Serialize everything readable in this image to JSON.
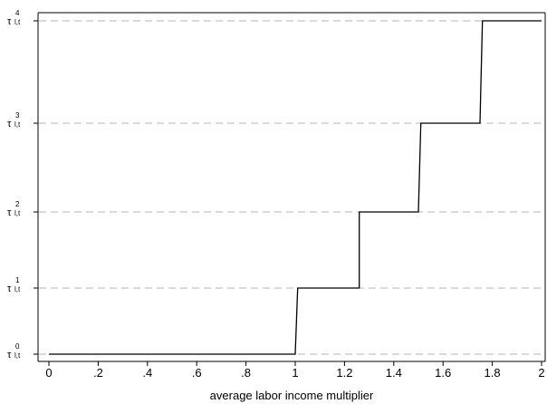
{
  "chart_data": {
    "type": "line",
    "title": "",
    "xlabel": "average labor income multiplier",
    "ylabel": "",
    "xlim": [
      0,
      2
    ],
    "x_ticks": [
      0,
      0.2,
      0.4,
      0.6,
      0.8,
      1,
      1.2,
      1.4,
      1.6,
      1.8,
      2
    ],
    "x_tick_labels": [
      "0",
      ".2",
      ".4",
      ".6",
      ".8",
      "1",
      "1.2",
      "1.4",
      "1.6",
      "1.8",
      "2"
    ],
    "y_levels": [
      0,
      1,
      2,
      3,
      4
    ],
    "y_tick_labels": [
      {
        "base": "τ",
        "sub": "l,t",
        "sup": "0"
      },
      {
        "base": "τ",
        "sub": "l,t",
        "sup": "1"
      },
      {
        "base": "τ",
        "sub": "l,t",
        "sup": "2"
      },
      {
        "base": "τ",
        "sub": "l,t",
        "sup": "3"
      },
      {
        "base": "τ",
        "sub": "l,t",
        "sup": "4"
      }
    ],
    "grid": "horizontal dashed",
    "series": [
      {
        "style": "step",
        "x": [
          0,
          1.0,
          1.01,
          1.26,
          1.26,
          1.5,
          1.51,
          1.75,
          1.76,
          2.0
        ],
        "y": [
          0,
          0,
          1,
          1,
          2,
          2,
          3,
          3,
          4,
          4
        ]
      }
    ]
  }
}
